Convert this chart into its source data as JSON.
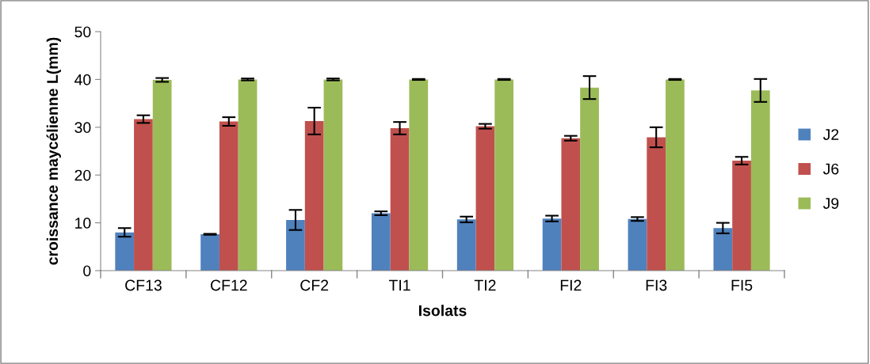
{
  "chart_data": {
    "type": "bar",
    "xlabel": "Isolats",
    "ylabel": "croissance maycélienne L(mm)",
    "categories": [
      "CF13",
      "CF12",
      "CF2",
      "TI1",
      "TI2",
      "FI2",
      "FI3",
      "FI5"
    ],
    "series": [
      {
        "name": "J2",
        "color": "#4f81bd",
        "values": [
          8.0,
          7.6,
          10.6,
          12.0,
          10.7,
          10.9,
          10.8,
          8.9
        ],
        "errors": [
          0.9,
          0.1,
          2.1,
          0.4,
          0.6,
          0.6,
          0.4,
          1.1
        ]
      },
      {
        "name": "J6",
        "color": "#c0504d",
        "values": [
          31.7,
          31.2,
          31.3,
          29.8,
          30.2,
          27.7,
          27.9,
          23.0
        ],
        "errors": [
          0.8,
          0.9,
          2.8,
          1.3,
          0.5,
          0.5,
          2.1,
          0.8
        ]
      },
      {
        "name": "J9",
        "color": "#9bbb59",
        "values": [
          39.9,
          40.0,
          40.0,
          40.0,
          40.0,
          38.3,
          40.0,
          37.7
        ],
        "errors": [
          0.4,
          0.2,
          0.2,
          0.1,
          0.1,
          2.4,
          0.1,
          2.4
        ]
      }
    ],
    "ylim": [
      0,
      50
    ],
    "yticks": [
      0,
      10,
      20,
      30,
      40,
      50
    ],
    "grid": false,
    "legend": "right"
  }
}
